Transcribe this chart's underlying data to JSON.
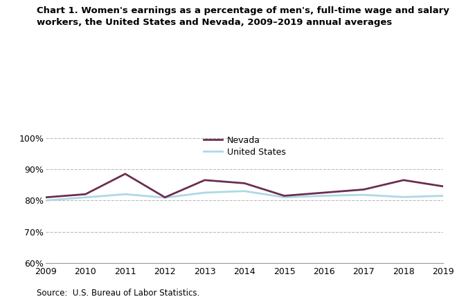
{
  "title_line1": "Chart 1. Women's earnings as a percentage of men's, full-time wage and salary",
  "title_line2": "workers, the United States and Nevada, 2009–2019 annual averages",
  "years": [
    2009,
    2010,
    2011,
    2012,
    2013,
    2014,
    2015,
    2016,
    2017,
    2018,
    2019
  ],
  "nevada": [
    81.0,
    82.0,
    88.5,
    81.0,
    86.5,
    85.5,
    81.5,
    82.5,
    83.5,
    86.5,
    84.5
  ],
  "us": [
    80.0,
    81.0,
    82.0,
    80.9,
    82.5,
    83.0,
    81.0,
    81.5,
    81.8,
    81.1,
    81.5
  ],
  "nevada_color": "#6b2d4e",
  "us_color": "#add8e6",
  "nevada_label": "Nevada",
  "us_label": "United States",
  "ylim": [
    60,
    102
  ],
  "yticks": [
    60,
    70,
    80,
    90,
    100
  ],
  "source": "Source:  U.S. Bureau of Labor Statistics.",
  "background_color": "#ffffff",
  "grid_color": "#bbbbbb"
}
